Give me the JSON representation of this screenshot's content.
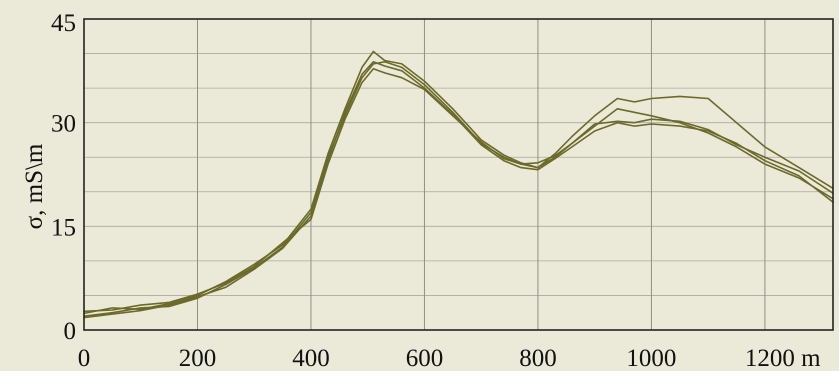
{
  "chart_data": {
    "type": "line",
    "title": "",
    "xlabel": "",
    "ylabel": "σ, mS\\m",
    "x_unit": "m",
    "xlim": [
      0,
      1320
    ],
    "ylim": [
      0,
      45
    ],
    "x_ticks": [
      0,
      200,
      400,
      600,
      800,
      1000,
      1200
    ],
    "x_tick_labels": [
      "0",
      "200",
      "400",
      "600",
      "800",
      "1000",
      "1200 m"
    ],
    "y_ticks": [
      0,
      15,
      30,
      45
    ],
    "y_tick_labels": [
      "0",
      "15",
      "30",
      "45"
    ],
    "x_grid_major": [
      200,
      400,
      600,
      800,
      1000,
      1200
    ],
    "y_grid": [
      5,
      10,
      15,
      20,
      25,
      30,
      35,
      40
    ],
    "grid": true,
    "legend": "none",
    "line_color": "#6b6a2a",
    "series": [
      {
        "x": [
          0,
          50,
          100,
          150,
          200,
          250,
          300,
          350,
          400,
          430,
          460,
          490,
          510,
          530,
          560,
          600,
          650,
          700,
          740,
          770,
          800,
          830,
          860,
          900,
          940,
          970,
          1000,
          1050,
          1100,
          1150,
          1200,
          1260,
          1320
        ],
        "values": [
          2.0,
          2.5,
          3.2,
          3.4,
          4.6,
          6.6,
          9.0,
          12.0,
          17.0,
          25.0,
          31.0,
          36.5,
          38.5,
          38.8,
          38.0,
          35.5,
          31.5,
          27.0,
          25.0,
          24.0,
          23.5,
          25.0,
          27.0,
          29.5,
          32.0,
          31.5,
          31.0,
          30.0,
          28.5,
          26.5,
          24.0,
          22.0,
          19.0
        ]
      },
      {
        "x": [
          0,
          50,
          100,
          150,
          200,
          250,
          300,
          350,
          400,
          430,
          460,
          490,
          510,
          530,
          560,
          600,
          650,
          700,
          740,
          770,
          800,
          830,
          860,
          900,
          940,
          970,
          1000,
          1050,
          1100,
          1150,
          1200,
          1260,
          1320
        ],
        "values": [
          2.4,
          3.2,
          3.0,
          3.8,
          5.0,
          7.0,
          9.5,
          12.3,
          17.5,
          25.5,
          32.0,
          38.0,
          40.3,
          39.0,
          38.5,
          36.0,
          32.0,
          27.5,
          25.3,
          24.2,
          23.5,
          25.5,
          28.0,
          31.0,
          33.5,
          33.0,
          33.5,
          33.8,
          33.5,
          30.0,
          26.5,
          23.5,
          20.5
        ]
      },
      {
        "x": [
          0,
          50,
          100,
          150,
          200,
          250,
          300,
          350,
          400,
          430,
          460,
          490,
          510,
          530,
          560,
          600,
          650,
          700,
          740,
          770,
          800,
          830,
          860,
          900,
          940,
          970,
          1000,
          1050,
          1100,
          1150,
          1200,
          1260,
          1320
        ],
        "values": [
          1.8,
          2.3,
          2.8,
          3.6,
          4.8,
          6.2,
          8.8,
          11.8,
          16.5,
          24.5,
          31.5,
          37.0,
          38.8,
          38.2,
          37.5,
          35.0,
          31.2,
          26.8,
          24.5,
          23.5,
          23.2,
          24.8,
          26.5,
          28.8,
          30.0,
          29.5,
          29.8,
          29.5,
          28.8,
          27.0,
          24.5,
          22.3,
          18.5
        ]
      },
      {
        "x": [
          0,
          50,
          100,
          150,
          200,
          250,
          300,
          350,
          400,
          430,
          460,
          490,
          510,
          530,
          560,
          600,
          650,
          700,
          740,
          770,
          800,
          830,
          860,
          900,
          940,
          970,
          1000,
          1050,
          1100,
          1150,
          1200,
          1260,
          1320
        ],
        "values": [
          2.7,
          2.9,
          3.6,
          4.0,
          5.2,
          6.8,
          9.2,
          12.6,
          16.0,
          24.0,
          30.5,
          35.8,
          37.8,
          37.2,
          36.5,
          34.8,
          31.0,
          27.2,
          24.8,
          24.0,
          24.2,
          25.2,
          27.0,
          29.8,
          30.2,
          30.0,
          30.5,
          30.2,
          29.0,
          26.8,
          25.0,
          23.0,
          19.8
        ]
      }
    ]
  }
}
